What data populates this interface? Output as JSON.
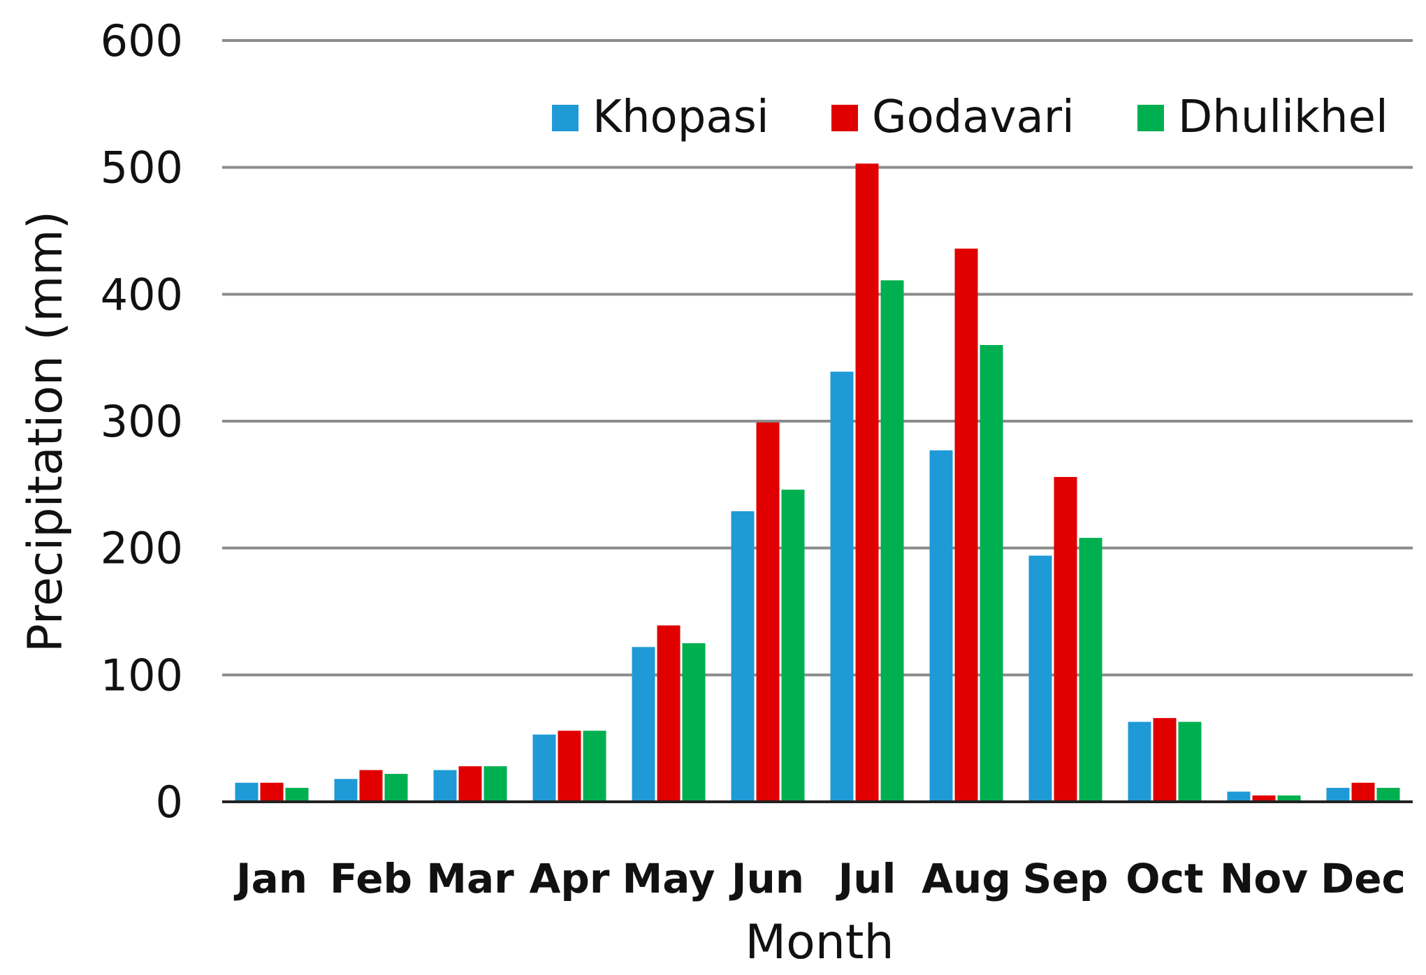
{
  "chart_data": {
    "type": "bar",
    "xlabel": "Month",
    "ylabel": "Precipitation (mm)",
    "ylim": [
      0,
      600
    ],
    "yticks": [
      0,
      100,
      200,
      300,
      400,
      500,
      600
    ],
    "grid": true,
    "legend_position": "top-right",
    "categories": [
      "Jan",
      "Feb",
      "Mar",
      "Apr",
      "May",
      "Jun",
      "Jul",
      "Aug",
      "Sep",
      "Oct",
      "Nov",
      "Dec"
    ],
    "series": [
      {
        "name": "Khopasi",
        "color": "#1f9ad6",
        "values": [
          15,
          18,
          25,
          53,
          122,
          229,
          339,
          277,
          194,
          63,
          8,
          11
        ]
      },
      {
        "name": "Godavari",
        "color": "#e00000",
        "values": [
          15,
          25,
          28,
          56,
          139,
          299,
          503,
          436,
          256,
          66,
          5,
          15
        ]
      },
      {
        "name": "Dhulikhel",
        "color": "#00b050",
        "values": [
          11,
          22,
          28,
          56,
          125,
          246,
          411,
          360,
          208,
          63,
          5,
          11
        ]
      }
    ]
  }
}
